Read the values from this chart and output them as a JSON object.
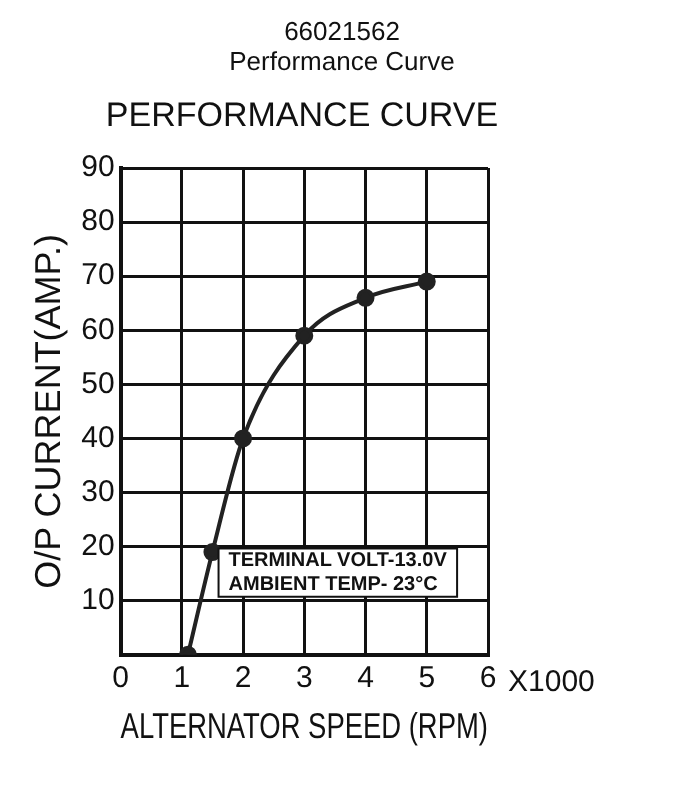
{
  "chart_data": {
    "type": "line",
    "title": "66021562",
    "subtitle": "Performance Curve",
    "xlabel": "ALTERNATOR SPEED (RPM)",
    "ylabel": "O/P CURRENT(AMP.)",
    "annotations": [
      "PERFORMANCE CURVE",
      "X1000",
      "TERMINAL VOLT-13.0V",
      "AMBIENT TEMP- 23°C"
    ],
    "series": [
      {
        "color": "#222222",
        "x": [
          1.1,
          1.5,
          2,
          3,
          4,
          5
        ],
        "values": [
          0,
          19,
          40,
          59,
          66,
          69
        ]
      }
    ],
    "xlim": [
      0,
      6
    ],
    "xticks": [
      0,
      1,
      2,
      3,
      4,
      5,
      6
    ],
    "ylim": [
      0,
      90
    ],
    "yticks": [
      {
        "value": 0,
        "label": null
      },
      10,
      20,
      30,
      40,
      50,
      60,
      70,
      80,
      90
    ],
    "grid": true,
    "marker": "circle",
    "line_style": "solid",
    "legend": false
  }
}
